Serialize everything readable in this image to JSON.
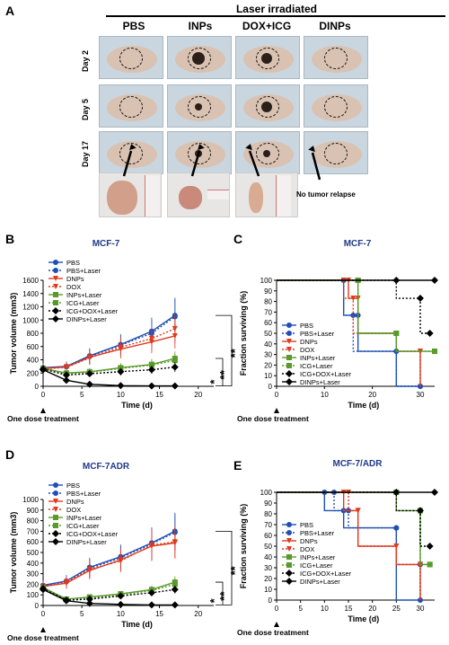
{
  "panel_a": {
    "letter": "A",
    "header": "Laser irradiated",
    "columns": [
      "PBS",
      "INPs",
      "DOX+ICG",
      "DINPs"
    ],
    "rows": [
      "Day 2",
      "Day 5",
      "Day 17"
    ],
    "no_relapse": "No tumor relapse",
    "colors": {
      "photo_bg": "#c9d6df",
      "mouse": "#d9c2b1"
    },
    "icons": [
      "mouse-photo",
      "dashed-tumor-circle",
      "arrow-icon",
      "ruler-icon",
      "excised-tumor"
    ]
  },
  "series_style": [
    {
      "name": "PBS",
      "color": "#1f4fb5",
      "marker": "circle",
      "dash": ""
    },
    {
      "name": "PBS+Laser",
      "color": "#1f4fb5",
      "marker": "circle",
      "dash": "2,2"
    },
    {
      "name": "DNPs",
      "color": "#e03a1e",
      "marker": "triangle-down",
      "dash": ""
    },
    {
      "name": "DOX",
      "color": "#e03a1e",
      "marker": "triangle-down",
      "dash": "2,2"
    },
    {
      "name": "INPs+Laser",
      "color": "#5a9a2a",
      "marker": "square",
      "dash": ""
    },
    {
      "name": "ICG+Laser",
      "color": "#5a9a2a",
      "marker": "square",
      "dash": "2,2"
    },
    {
      "name": "ICG+DOX+Laser",
      "color": "#000000",
      "marker": "diamond",
      "dash": "2,2"
    },
    {
      "name": "DINPs+Laser",
      "color": "#000000",
      "marker": "diamond",
      "dash": ""
    }
  ],
  "treatment_label": "One dose treatment",
  "chart_data": [
    {
      "panel": "B",
      "type": "line",
      "title": "MCF-7",
      "xlabel": "Time (d)",
      "ylabel": "Tumor volume (mm3)",
      "xlim": [
        0,
        22
      ],
      "ylim": [
        0,
        1600
      ],
      "xticks": [
        0,
        5,
        10,
        15,
        20
      ],
      "yticks": [
        0,
        200,
        400,
        600,
        800,
        1000,
        1200,
        1400,
        1600
      ],
      "x": [
        0,
        3,
        6,
        10,
        14,
        17
      ],
      "series": [
        {
          "name": "PBS",
          "values": [
            280,
            300,
            460,
            630,
            830,
            1070
          ]
        },
        {
          "name": "PBS+Laser",
          "values": [
            275,
            295,
            450,
            620,
            800,
            1050
          ]
        },
        {
          "name": "DNPs",
          "values": [
            270,
            290,
            440,
            560,
            670,
            760
          ]
        },
        {
          "name": "DOX",
          "values": [
            265,
            285,
            430,
            590,
            720,
            870
          ]
        },
        {
          "name": "INPs+Laser",
          "values": [
            270,
            200,
            220,
            280,
            330,
            420
          ]
        },
        {
          "name": "ICG+Laser",
          "values": [
            265,
            190,
            210,
            270,
            320,
            390
          ]
        },
        {
          "name": "ICG+DOX+Laser",
          "values": [
            260,
            170,
            190,
            220,
            250,
            290
          ]
        },
        {
          "name": "DINPs+Laser",
          "values": [
            250,
            90,
            30,
            10,
            5,
            5
          ]
        }
      ],
      "legend": "top-left",
      "annotations": [
        "*",
        "**",
        "**"
      ]
    },
    {
      "panel": "C",
      "type": "line",
      "title": "MCF-7",
      "xlabel": "Time (d)",
      "ylabel": "Fraction surviving (%)",
      "xlim": [
        0,
        33
      ],
      "ylim": [
        0,
        100
      ],
      "xticks": [
        0,
        10,
        20,
        30
      ],
      "yticks": [
        0,
        10,
        20,
        30,
        40,
        50,
        60,
        70,
        80,
        90,
        100
      ],
      "series": [
        {
          "name": "PBS",
          "steps": [
            [
              0,
              100
            ],
            [
              14,
              100
            ],
            [
              14,
              67
            ],
            [
              17,
              67
            ],
            [
              17,
              33
            ],
            [
              25,
              33
            ],
            [
              25,
              0
            ],
            [
              30,
              0
            ]
          ]
        },
        {
          "name": "PBS+Laser",
          "steps": [
            [
              0,
              100
            ],
            [
              14,
              100
            ],
            [
              14,
              67
            ],
            [
              16,
              67
            ],
            [
              16,
              33
            ],
            [
              25,
              33
            ],
            [
              25,
              0
            ],
            [
              30,
              0
            ]
          ]
        },
        {
          "name": "DNPs",
          "steps": [
            [
              0,
              100
            ],
            [
              15,
              100
            ],
            [
              15,
              83
            ],
            [
              17,
              83
            ],
            [
              17,
              50
            ],
            [
              25,
              50
            ],
            [
              25,
              33
            ],
            [
              30,
              33
            ],
            [
              30,
              0
            ]
          ]
        },
        {
          "name": "DOX",
          "steps": [
            [
              0,
              100
            ],
            [
              14,
              100
            ],
            [
              14,
              83
            ],
            [
              16,
              83
            ],
            [
              16,
              50
            ],
            [
              25,
              50
            ],
            [
              25,
              33
            ],
            [
              30,
              33
            ],
            [
              30,
              0
            ]
          ]
        },
        {
          "name": "INPs+Laser",
          "steps": [
            [
              0,
              100
            ],
            [
              17,
              100
            ],
            [
              17,
              50
            ],
            [
              25,
              50
            ],
            [
              25,
              33
            ],
            [
              33,
              33
            ]
          ]
        },
        {
          "name": "ICG+Laser",
          "steps": [
            [
              0,
              100
            ],
            [
              17,
              100
            ],
            [
              17,
              50
            ],
            [
              25,
              50
            ],
            [
              25,
              33
            ],
            [
              33,
              33
            ]
          ]
        },
        {
          "name": "ICG+DOX+Laser",
          "steps": [
            [
              0,
              100
            ],
            [
              25,
              100
            ],
            [
              25,
              83
            ],
            [
              30,
              83
            ],
            [
              30,
              50
            ],
            [
              32,
              50
            ]
          ]
        },
        {
          "name": "DINPs+Laser",
          "steps": [
            [
              0,
              100
            ],
            [
              33,
              100
            ]
          ]
        }
      ],
      "legend": "left"
    },
    {
      "panel": "D",
      "type": "line",
      "title": "MCF-7ADR",
      "xlabel": "Time (d)",
      "ylabel": "Tumor volume (mm3)",
      "xlim": [
        0,
        22
      ],
      "ylim": [
        0,
        1000
      ],
      "xticks": [
        0,
        5,
        10,
        15,
        20
      ],
      "yticks": [
        0,
        100,
        200,
        300,
        400,
        500,
        600,
        700,
        800,
        900,
        1000
      ],
      "x": [
        0,
        3,
        6,
        10,
        14,
        17
      ],
      "series": [
        {
          "name": "PBS",
          "values": [
            190,
            230,
            360,
            460,
            590,
            700
          ]
        },
        {
          "name": "PBS+Laser",
          "values": [
            185,
            225,
            350,
            450,
            580,
            690
          ]
        },
        {
          "name": "DNPs",
          "values": [
            180,
            210,
            330,
            430,
            560,
            590
          ]
        },
        {
          "name": "DOX",
          "values": [
            175,
            220,
            340,
            420,
            570,
            600
          ]
        },
        {
          "name": "INPs+Laser",
          "values": [
            170,
            60,
            80,
            110,
            150,
            220
          ]
        },
        {
          "name": "ICG+Laser",
          "values": [
            165,
            55,
            70,
            100,
            140,
            200
          ]
        },
        {
          "name": "ICG+DOX+Laser",
          "values": [
            160,
            50,
            60,
            90,
            120,
            150
          ]
        },
        {
          "name": "DINPs+Laser",
          "values": [
            150,
            45,
            20,
            10,
            5,
            5
          ]
        }
      ],
      "legend": "top-left",
      "annotations": [
        "*",
        "**",
        "**"
      ]
    },
    {
      "panel": "E",
      "type": "line",
      "title": "MCF-7/ADR",
      "xlabel": "Time (d)",
      "ylabel": "Fraction surviving (%)",
      "xlim": [
        0,
        33
      ],
      "ylim": [
        0,
        100
      ],
      "xticks": [
        0,
        5,
        10,
        15,
        20,
        25,
        30
      ],
      "yticks": [
        0,
        10,
        20,
        30,
        40,
        50,
        60,
        70,
        80,
        90,
        100
      ],
      "series": [
        {
          "name": "PBS",
          "steps": [
            [
              0,
              100
            ],
            [
              10,
              100
            ],
            [
              10,
              83
            ],
            [
              14,
              83
            ],
            [
              14,
              67
            ],
            [
              25,
              67
            ],
            [
              25,
              0
            ],
            [
              30,
              0
            ]
          ]
        },
        {
          "name": "PBS+Laser",
          "steps": [
            [
              0,
              100
            ],
            [
              12,
              100
            ],
            [
              12,
              83
            ],
            [
              15,
              83
            ],
            [
              15,
              67
            ],
            [
              25,
              67
            ],
            [
              25,
              33
            ],
            [
              30,
              33
            ],
            [
              30,
              0
            ]
          ]
        },
        {
          "name": "DNPs",
          "steps": [
            [
              0,
              100
            ],
            [
              14,
              100
            ],
            [
              14,
              83
            ],
            [
              17,
              83
            ],
            [
              17,
              50
            ],
            [
              25,
              50
            ],
            [
              25,
              33
            ],
            [
              30,
              33
            ],
            [
              30,
              0
            ]
          ]
        },
        {
          "name": "DOX",
          "steps": [
            [
              0,
              100
            ],
            [
              15,
              100
            ],
            [
              15,
              83
            ],
            [
              17,
              83
            ],
            [
              17,
              50
            ],
            [
              25,
              50
            ],
            [
              25,
              33
            ],
            [
              30,
              33
            ],
            [
              30,
              0
            ]
          ]
        },
        {
          "name": "INPs+Laser",
          "steps": [
            [
              0,
              100
            ],
            [
              25,
              100
            ],
            [
              25,
              83
            ],
            [
              30,
              83
            ],
            [
              30,
              33
            ],
            [
              32,
              33
            ]
          ]
        },
        {
          "name": "ICG+Laser",
          "steps": [
            [
              0,
              100
            ],
            [
              25,
              100
            ],
            [
              25,
              83
            ],
            [
              30,
              83
            ],
            [
              30,
              33
            ],
            [
              32,
              33
            ]
          ]
        },
        {
          "name": "ICG+DOX+Laser",
          "steps": [
            [
              0,
              100
            ],
            [
              25,
              100
            ],
            [
              25,
              83
            ],
            [
              30,
              83
            ],
            [
              30,
              50
            ],
            [
              32,
              50
            ]
          ]
        },
        {
          "name": "DINPs+Laser",
          "steps": [
            [
              0,
              100
            ],
            [
              33,
              100
            ]
          ]
        }
      ],
      "legend": "left"
    }
  ]
}
